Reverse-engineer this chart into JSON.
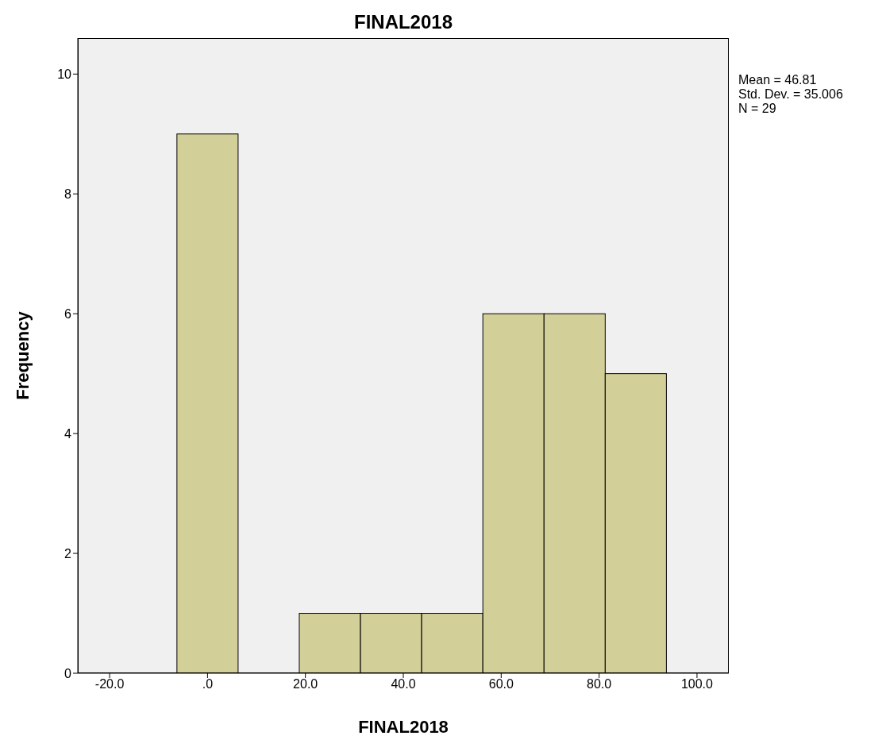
{
  "chart_data": {
    "type": "histogram",
    "title": "FINAL2018",
    "xlabel": "FINAL2018",
    "ylabel": "Frequency",
    "bins": [
      -6.25,
      6.25,
      18.75,
      31.25,
      43.75,
      56.25,
      68.75,
      81.25,
      93.75
    ],
    "values": [
      9,
      0,
      1,
      1,
      1,
      6,
      6,
      5
    ],
    "color": "#d3cf98",
    "xlim": [
      -26.5,
      106.5
    ],
    "xticks": [
      {
        "value": -20,
        "label": "-20.0"
      },
      {
        "value": 0,
        "label": ".0"
      },
      {
        "value": 20,
        "label": "20.0"
      },
      {
        "value": 40,
        "label": "40.0"
      },
      {
        "value": 60,
        "label": "60.0"
      },
      {
        "value": 80,
        "label": "80.0"
      },
      {
        "value": 100,
        "label": "100.0"
      }
    ],
    "ylim": [
      0,
      10.6
    ],
    "yticks": [
      0,
      2,
      4,
      6,
      8,
      10
    ],
    "grid": false,
    "annotations": [
      "Mean = 46.81",
      "Std. Dev. = 35.006",
      "N = 29"
    ]
  }
}
